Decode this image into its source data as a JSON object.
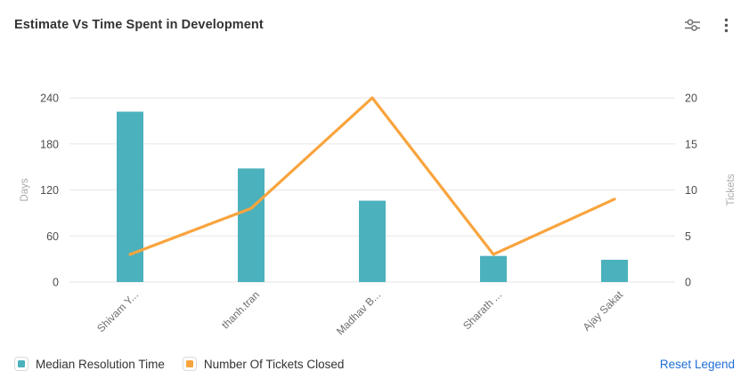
{
  "header": {
    "title": "Estimate Vs Time Spent in Development",
    "icons": [
      {
        "name": "chart-settings-sliders-icon"
      },
      {
        "name": "kebab-menu-icon"
      }
    ]
  },
  "chart_data": {
    "type": "combo",
    "categories": [
      "Shivam Y...",
      "thanh.tran",
      "Madhav B...",
      "Sharath ...",
      "Ajay Sakat"
    ],
    "series": [
      {
        "name": "Median Resolution Time",
        "type": "bar",
        "axis": "left",
        "values": [
          222,
          148,
          106,
          34,
          29
        ],
        "color": "#4BB1BD"
      },
      {
        "name": "Number Of Tickets Closed",
        "type": "line",
        "axis": "right",
        "values": [
          3,
          8,
          20,
          3,
          9
        ],
        "color": "#F8A43D"
      }
    ],
    "left_axis": {
      "label": "Days",
      "min": 0,
      "max": 240,
      "ticks": [
        0,
        60,
        120,
        180,
        240
      ]
    },
    "right_axis": {
      "label": "Tickets",
      "min": 0,
      "max": 20,
      "ticks": [
        0,
        5,
        10,
        15,
        20
      ]
    },
    "grid": true,
    "gridline_color": "#ebebeb",
    "legend_position": "bottom",
    "x_label_rotation": 45
  },
  "legend": {
    "items": [
      {
        "label": "Median Resolution Time",
        "color": "#4BB1BD"
      },
      {
        "label": "Number Of Tickets Closed",
        "color": "#F8A43D"
      }
    ],
    "reset_label": "Reset Legend",
    "reset_color": "#1E6FD8"
  }
}
